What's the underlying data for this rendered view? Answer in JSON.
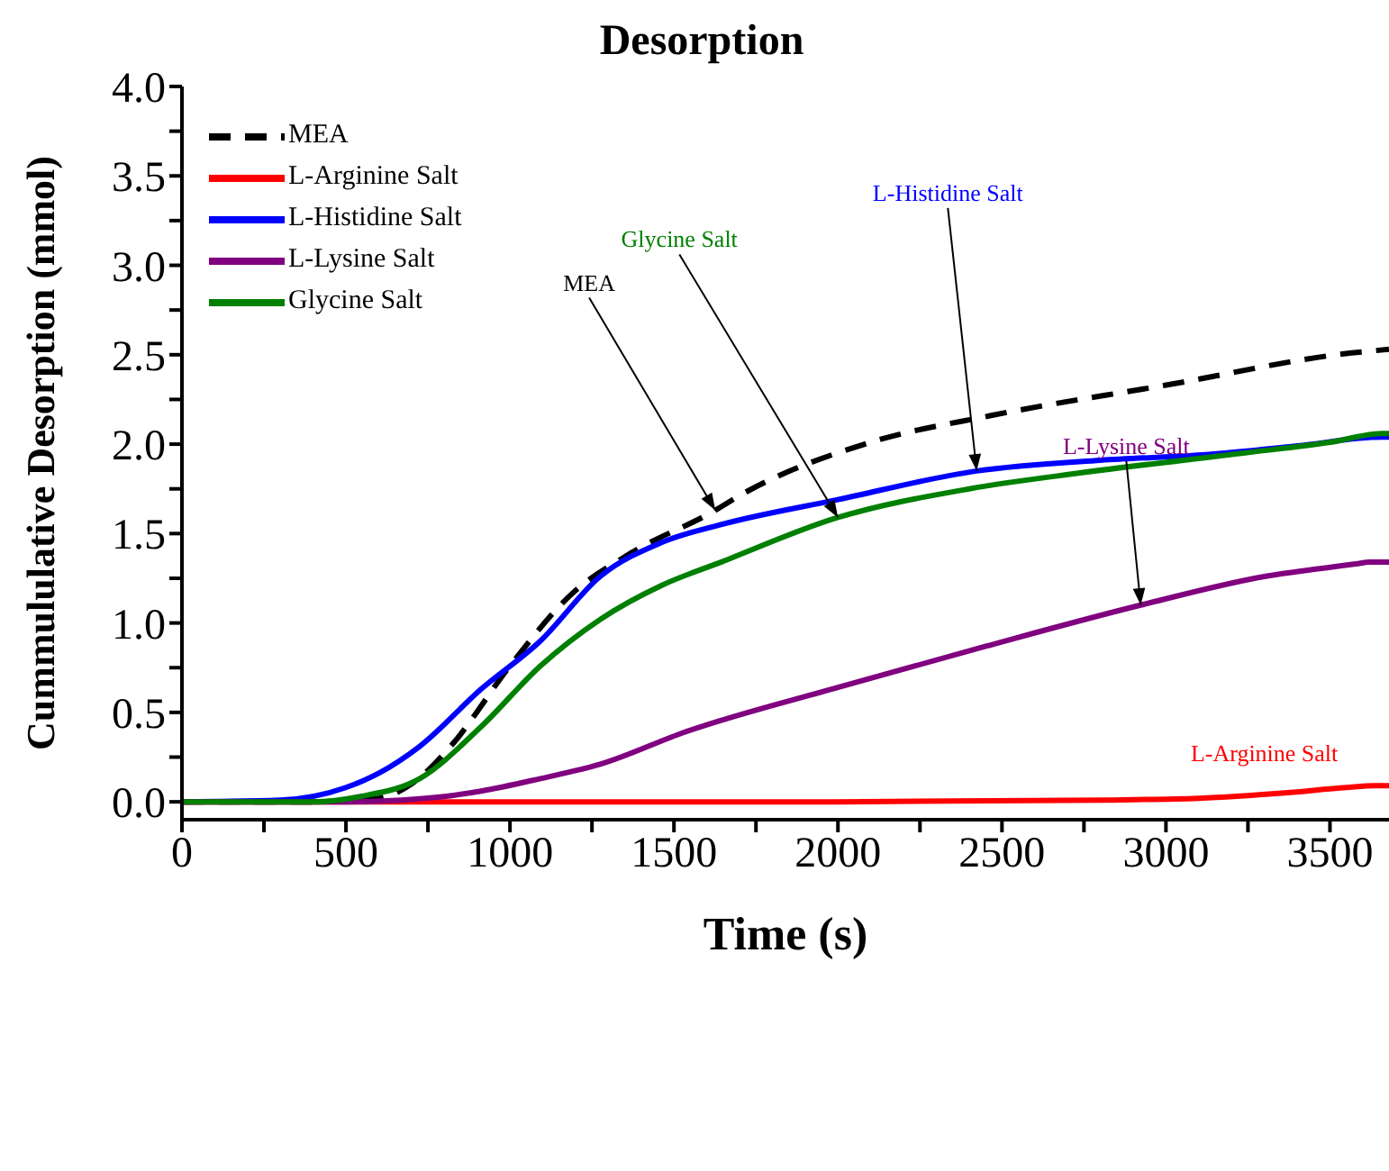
{
  "chart_data": {
    "type": "line",
    "title": "Desorption",
    "xlabel": "Time (s)",
    "ylabel": "Cummululative Desorption (mmol)",
    "xlim": [
      0,
      3680
    ],
    "ylim": [
      -0.1,
      4.0
    ],
    "xticks": [
      0,
      {
        "value": 250,
        "label": null
      },
      500,
      {
        "value": 750,
        "label": null
      },
      1000,
      {
        "value": 1250,
        "label": null
      },
      1500,
      {
        "value": 1750,
        "label": null
      },
      2000,
      {
        "value": 2250,
        "label": null
      },
      2500,
      {
        "value": 2750,
        "label": null
      },
      3000,
      {
        "value": 3250,
        "label": null
      },
      3500
    ],
    "yticks": [
      {
        "value": 0,
        "label": "0.0"
      },
      {
        "value": 0.25,
        "label": null
      },
      {
        "value": 0.5,
        "label": "0.5"
      },
      {
        "value": 0.75,
        "label": null
      },
      {
        "value": 1,
        "label": "1.0"
      },
      {
        "value": 1.25,
        "label": null
      },
      {
        "value": 1.5,
        "label": "1.5"
      },
      {
        "value": 1.75,
        "label": null
      },
      {
        "value": 2,
        "label": "2.0"
      },
      {
        "value": 2.25,
        "label": null
      },
      {
        "value": 2.5,
        "label": "2.5"
      },
      {
        "value": 2.75,
        "label": null
      },
      {
        "value": 3,
        "label": "3.0"
      },
      {
        "value": 3.25,
        "label": null
      },
      {
        "value": 3.5,
        "label": "3.5"
      },
      {
        "value": 3.75,
        "label": null
      },
      {
        "value": 4,
        "label": "4.0"
      }
    ],
    "legend": "top left",
    "marker": "none",
    "series": [
      {
        "name": "MEA",
        "color": "#000000",
        "line_style": "dashed",
        "x": [
          0,
          400,
          600,
          700,
          819,
          1000,
          1187,
          1368,
          1626,
          1698,
          2099,
          2467,
          3000,
          3566,
          3680
        ],
        "values": [
          0,
          0,
          0.02,
          0.1,
          0.31,
          0.76,
          1.16,
          1.39,
          1.63,
          1.71,
          2.01,
          2.16,
          2.33,
          2.51,
          2.53
        ]
      },
      {
        "name": "L-Arginine Salt",
        "color": "#ff0000",
        "line_style": "solid",
        "x": [
          0,
          1000,
          2000,
          2813,
          3100,
          3363,
          3550,
          3637,
          3680
        ],
        "values": [
          0,
          0,
          0,
          0.01,
          0.02,
          0.05,
          0.08,
          0.09,
          0.09
        ]
      },
      {
        "name": "L-Histidine Salt",
        "color": "#0000ff",
        "line_style": "solid",
        "x": [
          0,
          300,
          500,
          600,
          725,
          912,
          1093,
          1275,
          1462,
          1643,
          2000,
          2423,
          2800,
          3110,
          3400,
          3660,
          3680
        ],
        "values": [
          0,
          0.01,
          0.08,
          0.16,
          0.31,
          0.63,
          0.9,
          1.26,
          1.45,
          1.55,
          1.69,
          1.85,
          1.91,
          1.94,
          1.99,
          2.04,
          2.04
        ]
      },
      {
        "name": "L-Lysine Salt",
        "color": "#800080",
        "line_style": "solid",
        "x": [
          0,
          500,
          670,
          800,
          912,
          1093,
          1275,
          1533,
          2000,
          2451,
          2923,
          3300,
          3580,
          3620,
          3680
        ],
        "values": [
          0,
          0,
          0.01,
          0.03,
          0.06,
          0.13,
          0.21,
          0.39,
          0.64,
          0.87,
          1.1,
          1.26,
          1.33,
          1.34,
          1.34
        ]
      },
      {
        "name": "Glycine Salt",
        "color": "#008000",
        "line_style": "solid",
        "x": [
          0,
          400,
          544,
          725,
          912,
          1093,
          1275,
          1462,
          1643,
          2000,
          2400,
          2742,
          3236,
          3500,
          3660,
          3680
        ],
        "values": [
          0,
          0,
          0.03,
          0.13,
          0.42,
          0.76,
          1.02,
          1.21,
          1.34,
          1.59,
          1.75,
          1.84,
          1.95,
          2.01,
          2.06,
          2.06
        ]
      }
    ],
    "annotations": [
      {
        "text": "MEA",
        "x": 1626,
        "y": 1.63
      },
      {
        "text": "Glycine Salt",
        "x": 2000,
        "y": 1.59
      },
      {
        "text": "L-Histidine Salt",
        "x": 2423,
        "y": 1.85
      },
      {
        "text": "L-Lysine Salt",
        "x": 2923,
        "y": 1.1
      },
      {
        "text": "L-Arginine Salt",
        "x": 3300,
        "y": 0.045
      }
    ]
  }
}
